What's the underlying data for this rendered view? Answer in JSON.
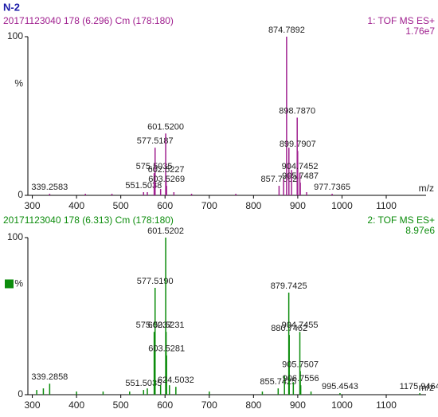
{
  "page_title": "N-2",
  "chart_data": [
    {
      "type": "spectrum",
      "title": "20171123040 178 (6.296) Cm (178:180)",
      "color": "#a0208f",
      "annotations": [
        "1: TOF MS ES+",
        "1.76e7"
      ],
      "xlabel": "m/z",
      "ylabel": "%",
      "x": [
        339.2583,
        420,
        480,
        551.5038,
        560,
        575.5035,
        577.5187,
        590,
        601.52,
        602.5227,
        603.5269,
        620,
        660,
        760,
        857.7602,
        868,
        874.7892,
        880,
        886,
        898.787,
        899.7907,
        904.7452,
        905.7487,
        920,
        977.7365
      ],
      "x_labels": [
        "339.2583",
        null,
        null,
        "551.5038",
        null,
        "575.5035",
        "577.5187",
        null,
        "601.5200",
        "602.5227",
        "603.5269",
        null,
        null,
        null,
        "857.7602",
        null,
        "874.7892",
        null,
        null,
        "898.7870",
        "899.7907",
        "904.7452",
        "905.7487",
        null,
        "977.7365"
      ],
      "values": [
        1,
        1,
        1,
        2,
        2,
        14,
        30,
        4,
        39,
        12,
        6,
        2,
        1,
        1,
        6,
        10,
        100,
        30,
        16,
        49,
        28,
        14,
        8,
        2,
        1
      ],
      "xlim": [
        290,
        1190
      ],
      "xticks": [
        300,
        400,
        500,
        600,
        700,
        800,
        900,
        1000,
        1100
      ],
      "ylim": [
        0,
        100
      ],
      "yticks": [
        0,
        100
      ]
    },
    {
      "type": "spectrum",
      "title": "20171123040 178 (6.313) Cm (178:180)",
      "color": "#0c8c0c",
      "annotations": [
        "2: TOF MS ES+",
        "8.97e6"
      ],
      "xlabel": "m/z",
      "ylabel": "%",
      "x": [
        310,
        325,
        339.2858,
        400,
        460,
        520,
        551.5035,
        560,
        575.5037,
        577.519,
        590,
        601.5202,
        602.5231,
        603.5281,
        610,
        624.5032,
        700,
        820,
        855.7425,
        870,
        879.7425,
        880.7462,
        890,
        904.7455,
        905.7507,
        906.7556,
        930,
        995.4543,
        1175.9464
      ],
      "x_labels": [
        null,
        null,
        "339.2858",
        null,
        null,
        null,
        "551.5035",
        null,
        "575.5037",
        "577.5190",
        null,
        "601.5202",
        "602.5231",
        "603.5281",
        null,
        "624.5032",
        null,
        null,
        "855.7425",
        null,
        "879.7425",
        "880.7462",
        null,
        "904.7455",
        "905.7507",
        "906.7556",
        null,
        "995.4543",
        "1175.9464"
      ],
      "values": [
        3,
        4,
        7,
        2,
        2,
        2,
        3,
        4,
        40,
        68,
        6,
        100,
        40,
        25,
        6,
        5,
        2,
        2,
        4,
        12,
        65,
        38,
        8,
        40,
        15,
        6,
        2,
        1,
        1
      ],
      "xlim": [
        290,
        1190
      ],
      "xticks": [
        300,
        400,
        500,
        600,
        700,
        800,
        900,
        1000,
        1100
      ],
      "ylim": [
        0,
        100
      ],
      "yticks": [
        0,
        100
      ]
    }
  ]
}
